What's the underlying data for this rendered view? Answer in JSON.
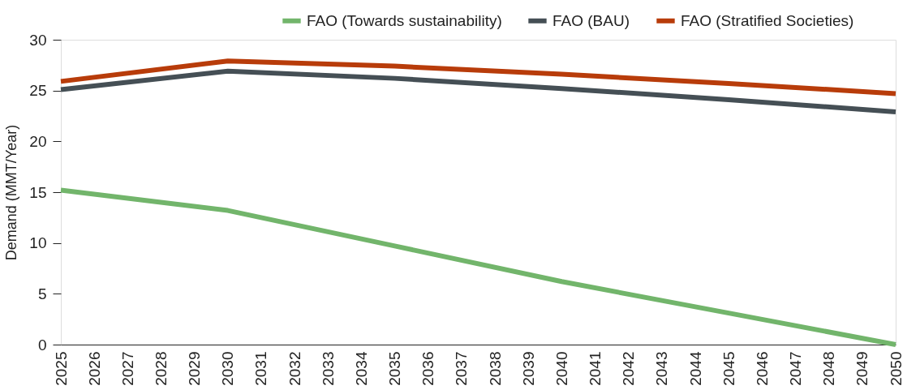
{
  "chart_data": {
    "type": "line",
    "ylabel": "Demand (MMT/Year)",
    "x": [
      2025,
      2030,
      2035,
      2040,
      2045,
      2050
    ],
    "xlim": [
      2025,
      2050
    ],
    "xticks": [
      2025,
      2026,
      2027,
      2028,
      2029,
      2030,
      2031,
      2032,
      2033,
      2034,
      2035,
      2036,
      2037,
      2038,
      2039,
      2040,
      2041,
      2042,
      2043,
      2044,
      2045,
      2046,
      2047,
      2048,
      2049,
      2050
    ],
    "ylim": [
      0,
      30
    ],
    "yticks": [
      0,
      5,
      10,
      15,
      20,
      25,
      30
    ],
    "series": [
      {
        "name": "FAO (Towards sustainability)",
        "color": "#72b56b",
        "values": [
          15.2,
          13.2,
          9.7,
          6.2,
          3.1,
          0
        ]
      },
      {
        "name": "FAO (BAU)",
        "color": "#454f55",
        "values": [
          25.1,
          26.9,
          26.2,
          25.2,
          24.1,
          22.9
        ]
      },
      {
        "name": "FAO (Stratified Societies)",
        "color": "#b83c0a",
        "values": [
          25.9,
          27.9,
          27.4,
          26.6,
          25.7,
          24.7
        ]
      }
    ],
    "grid": false,
    "legend": "top right",
    "marker": "none",
    "line_style": "solid"
  }
}
